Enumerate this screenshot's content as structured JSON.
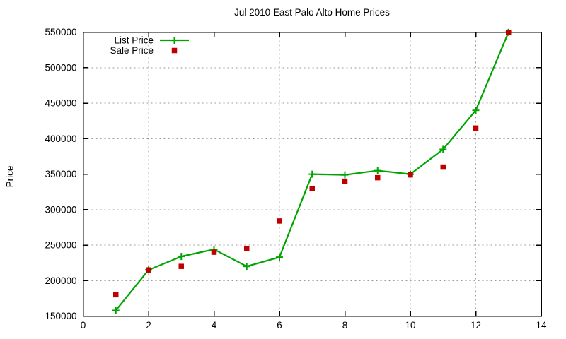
{
  "chart_data": {
    "type": "line",
    "title": "Jul 2010 East Palo Alto Home Prices",
    "xlabel": "",
    "ylabel": "Price",
    "xlim": [
      0,
      14
    ],
    "ylim": [
      150000,
      550000
    ],
    "xticks": [
      0,
      2,
      4,
      6,
      8,
      10,
      12,
      14
    ],
    "yticks": [
      150000,
      200000,
      250000,
      300000,
      350000,
      400000,
      450000,
      500000,
      550000
    ],
    "grid": true,
    "legend_position": "top-left-inside",
    "x": [
      1,
      2,
      3,
      4,
      5,
      6,
      7,
      8,
      9,
      10,
      11,
      12,
      13
    ],
    "series": [
      {
        "name": "List Price",
        "marker": "plus",
        "line": true,
        "color": "#00a400",
        "values": [
          158000,
          215000,
          234000,
          244000,
          220000,
          233000,
          350000,
          349000,
          355000,
          350000,
          385000,
          440000,
          550000
        ]
      },
      {
        "name": "Sale Price",
        "marker": "square",
        "line": false,
        "color": "#c00000",
        "values": [
          180000,
          215000,
          220000,
          240000,
          245000,
          284000,
          330000,
          340000,
          345000,
          349000,
          360000,
          415000,
          550000
        ]
      }
    ],
    "colors": {
      "border": "#000000",
      "grid": "#9a9a9a",
      "background": "#ffffff"
    }
  }
}
